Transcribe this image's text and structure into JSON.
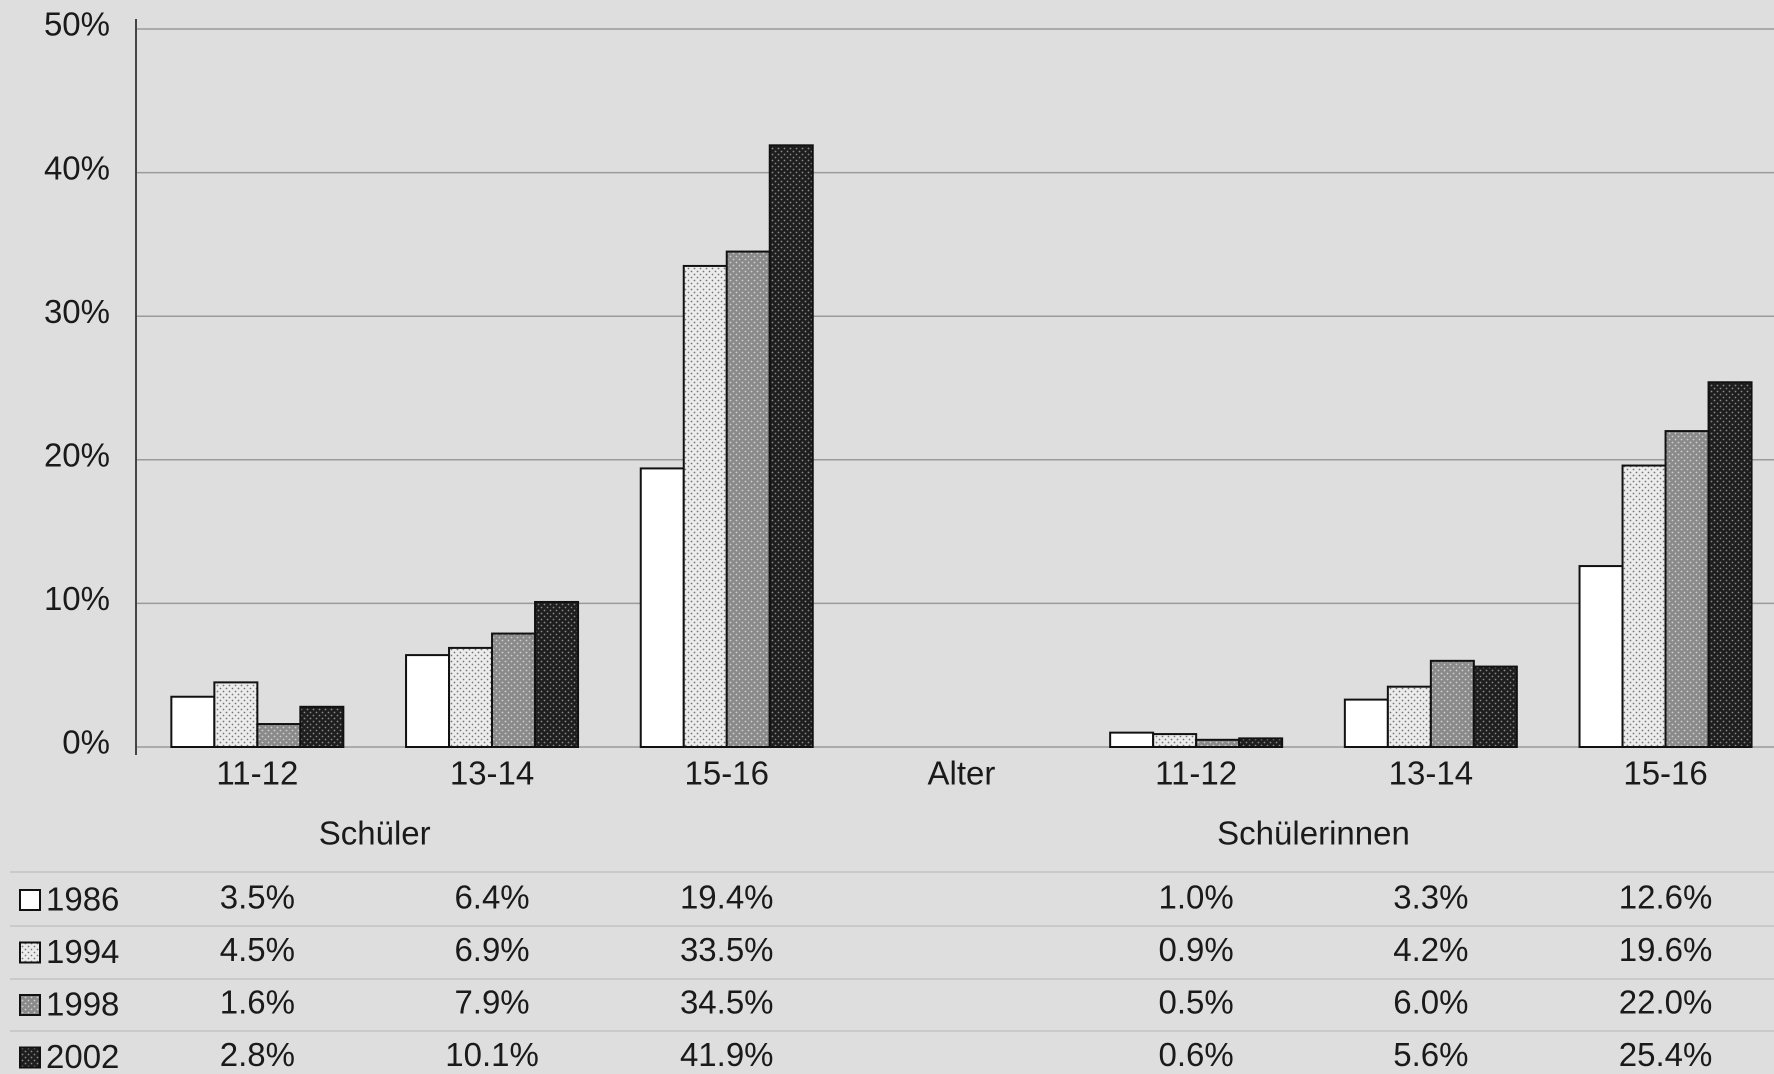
{
  "chart_data": {
    "type": "bar",
    "categories": [
      "11-12",
      "13-14",
      "15-16",
      "11-12",
      "13-14",
      "15-16"
    ],
    "groups": [
      "Schüler",
      "Schülerinnen"
    ],
    "x_label": "Alter",
    "series": [
      {
        "name": "1986",
        "color": "#ffffff",
        "values": [
          3.5,
          6.4,
          19.4,
          1.0,
          3.3,
          12.6
        ],
        "value_labels": [
          "3.5%",
          "6.4%",
          "19.4%",
          "1.0%",
          "3.3%",
          "12.6%"
        ]
      },
      {
        "name": "1994",
        "color": "#ececec",
        "values": [
          4.5,
          6.9,
          33.5,
          0.9,
          4.2,
          19.6
        ],
        "value_labels": [
          "4.5%",
          "6.9%",
          "33.5%",
          "0.9%",
          "4.2%",
          "19.6%"
        ]
      },
      {
        "name": "1998",
        "color": "#8a8a8a",
        "values": [
          1.6,
          7.9,
          34.5,
          0.5,
          6.0,
          22.0
        ],
        "value_labels": [
          "1.6%",
          "7.9%",
          "34.5%",
          "0.5%",
          "6.0%",
          "22.0%"
        ]
      },
      {
        "name": "2002",
        "color": "#1e1e1e",
        "values": [
          2.8,
          10.1,
          41.9,
          0.6,
          5.6,
          25.4
        ],
        "value_labels": [
          "2.8%",
          "10.1%",
          "41.9%",
          "0.6%",
          "5.6%",
          "25.4%"
        ]
      }
    ],
    "ylim": [
      0,
      50
    ],
    "yticks": [
      {
        "value": 0,
        "label": "0%"
      },
      {
        "value": 10,
        "label": "10%"
      },
      {
        "value": 20,
        "label": "20%"
      },
      {
        "value": 30,
        "label": "30%"
      },
      {
        "value": 40,
        "label": "40%"
      },
      {
        "value": 50,
        "label": "50%"
      }
    ],
    "grid": true
  }
}
